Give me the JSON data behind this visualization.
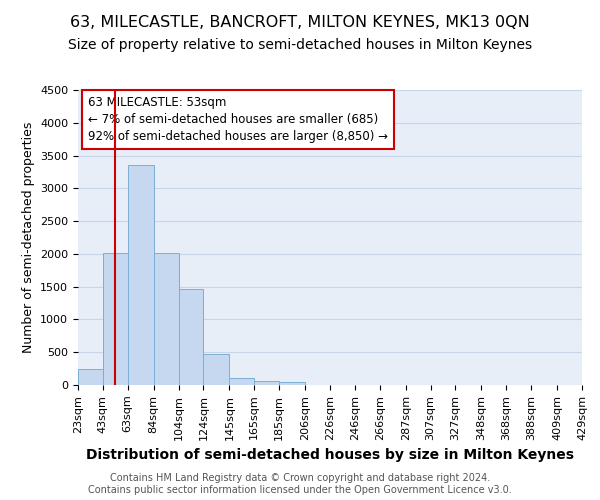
{
  "title": "63, MILECASTLE, BANCROFT, MILTON KEYNES, MK13 0QN",
  "subtitle": "Size of property relative to semi-detached houses in Milton Keynes",
  "xlabel": "Distribution of semi-detached houses by size in Milton Keynes",
  "ylabel": "Number of semi-detached properties",
  "footer1": "Contains HM Land Registry data © Crown copyright and database right 2024.",
  "footer2": "Contains public sector information licensed under the Open Government Licence v3.0.",
  "annotation_text_line1": "63 MILECASTLE: 53sqm",
  "annotation_text_line2": "← 7% of semi-detached houses are smaller (685)",
  "annotation_text_line3": "92% of semi-detached houses are larger (8,850) →",
  "bar_edges": [
    23,
    43,
    63,
    84,
    104,
    124,
    145,
    165,
    185,
    206,
    226,
    246,
    266,
    287,
    307,
    327,
    348,
    368,
    388,
    409,
    429
  ],
  "bar_heights": [
    250,
    2020,
    3360,
    2010,
    1460,
    480,
    100,
    55,
    45,
    0,
    0,
    0,
    0,
    0,
    0,
    0,
    0,
    0,
    0,
    0
  ],
  "bar_color": "#c5d8f0",
  "bar_edge_color": "#7bafd4",
  "grid_color": "#c8d4e8",
  "background_color": "#e8eef8",
  "vline_color": "#cc0000",
  "vline_x": 53,
  "ylim": [
    0,
    4500
  ],
  "yticks": [
    0,
    500,
    1000,
    1500,
    2000,
    2500,
    3000,
    3500,
    4000,
    4500
  ],
  "title_fontsize": 11.5,
  "subtitle_fontsize": 10,
  "xlabel_fontsize": 10,
  "ylabel_fontsize": 9,
  "tick_fontsize": 8,
  "annotation_box_color": "#cc0000",
  "annotation_fontsize": 8.5
}
